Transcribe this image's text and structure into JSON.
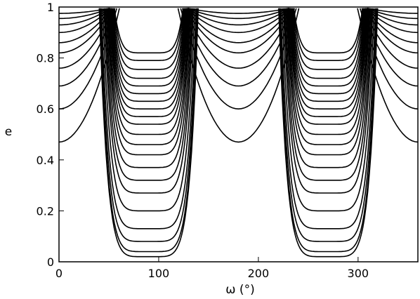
{
  "chart_data": {
    "type": "line",
    "title": "",
    "xlabel": "ω (°)",
    "ylabel": "e",
    "xlim": [
      0,
      360
    ],
    "ylim": [
      0,
      1
    ],
    "xticks": [
      0,
      100,
      200,
      300
    ],
    "xtick_labels": [
      "0",
      "100",
      "200",
      "300"
    ],
    "yticks": [
      0,
      0.2,
      0.4,
      0.6,
      0.8,
      1
    ],
    "ytick_labels": [
      "0",
      "0.2",
      "0.4",
      "0.6",
      "0.8",
      "1"
    ],
    "grid": false,
    "legend": "none",
    "description_values": {
      "libration_centers_omega": [
        90,
        270
      ],
      "circulation_minima_omega": [
        0,
        180,
        360
      ],
      "separatrix_omega": [
        40,
        140,
        220,
        320
      ],
      "libration_level_min_e": [
        0.82,
        0.79,
        0.755,
        0.72,
        0.69,
        0.66,
        0.63,
        0.6,
        0.57,
        0.54,
        0.5,
        0.46,
        0.42,
        0.37,
        0.32,
        0.27,
        0.2,
        0.13,
        0.08,
        0.04,
        0.02
      ],
      "circulation_level_min_e": [
        0.47,
        0.6,
        0.69,
        0.76,
        0.82,
        0.86,
        0.9,
        0.93,
        0.955,
        0.975
      ]
    }
  }
}
